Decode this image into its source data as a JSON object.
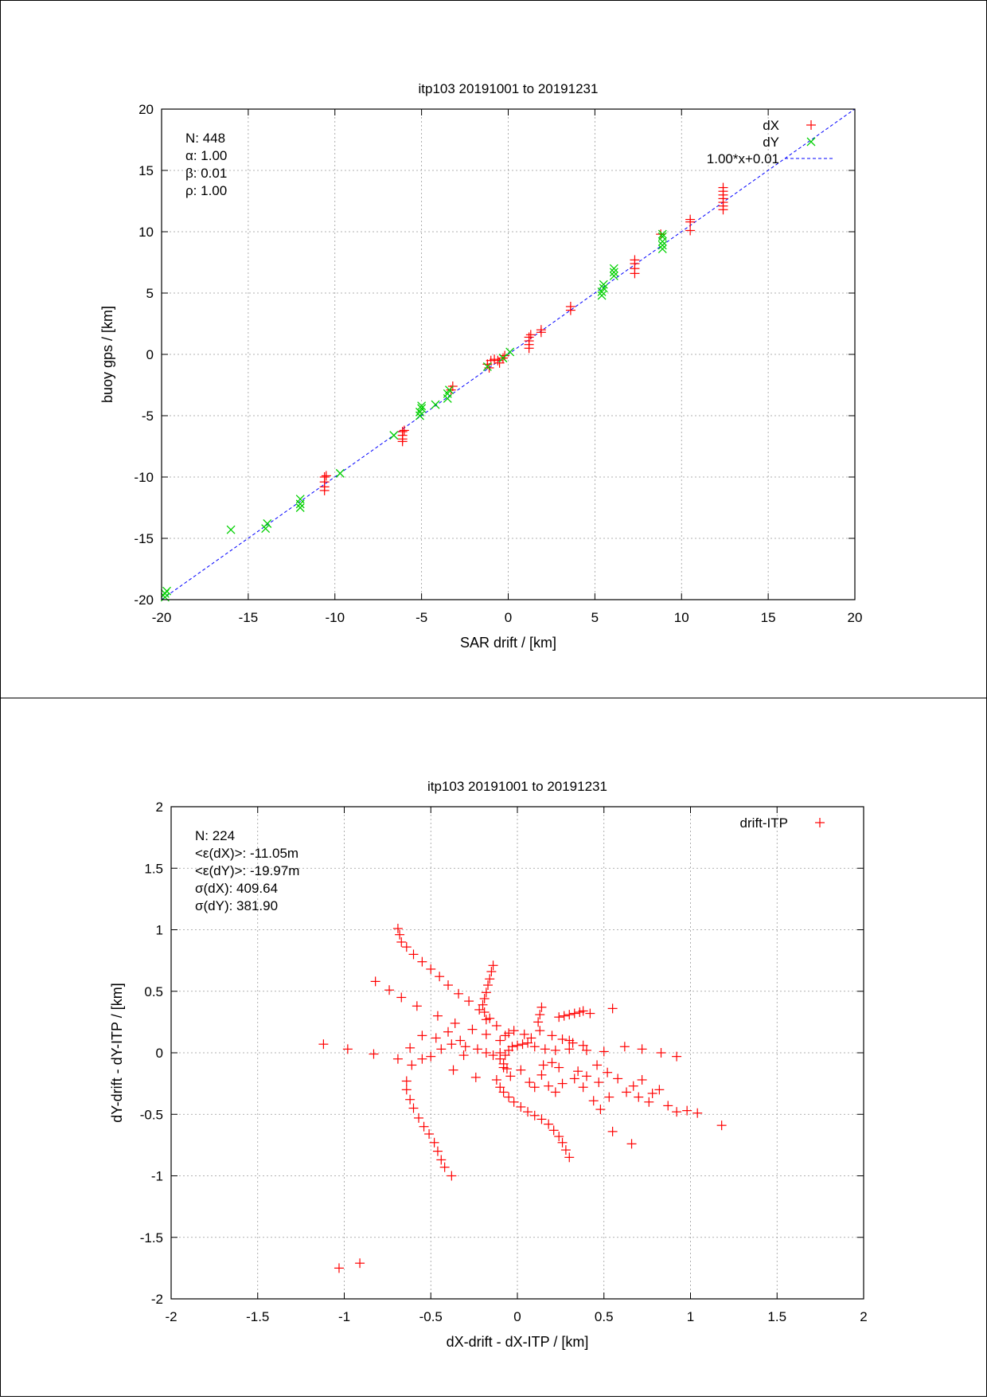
{
  "chart_data": [
    {
      "type": "scatter",
      "title": "itp103 20191001 to 20191231",
      "xlabel": "SAR drift / [km]",
      "ylabel": "buoy gps / [km]",
      "xlim": [
        -20,
        20
      ],
      "ylim": [
        -20,
        20
      ],
      "xticks": [
        -20,
        -15,
        -10,
        -5,
        0,
        5,
        10,
        15,
        20
      ],
      "yticks": [
        -20,
        -15,
        -10,
        -5,
        0,
        5,
        10,
        15,
        20
      ],
      "grid": true,
      "legend_position": "top-right",
      "stats": [
        "N: 448",
        "α: 1.00",
        "β: 0.01",
        "ρ: 1.00"
      ],
      "series": [
        {
          "name": "dX",
          "marker": "plus",
          "color": "#ff0000",
          "points": [
            [
              -10.6,
              -10.0
            ],
            [
              -10.6,
              -10.4
            ],
            [
              -10.6,
              -10.8
            ],
            [
              -10.6,
              -11.1
            ],
            [
              -10.5,
              -9.9
            ],
            [
              -6.1,
              -6.3
            ],
            [
              -6.1,
              -6.6
            ],
            [
              -6.1,
              -6.9
            ],
            [
              -6.1,
              -7.1
            ],
            [
              -6.0,
              -6.2
            ],
            [
              -3.2,
              -2.6
            ],
            [
              -3.3,
              -2.9
            ],
            [
              -1.1,
              -1.1
            ],
            [
              -1.2,
              -0.8
            ],
            [
              -0.6,
              -0.5
            ],
            [
              -0.8,
              -0.4
            ],
            [
              -1.0,
              -0.5
            ],
            [
              -0.5,
              -0.7
            ],
            [
              -0.2,
              -0.1
            ],
            [
              -0.3,
              -0.3
            ],
            [
              1.2,
              0.5
            ],
            [
              1.2,
              0.8
            ],
            [
              1.2,
              1.1
            ],
            [
              1.2,
              1.4
            ],
            [
              1.3,
              1.6
            ],
            [
              1.9,
              1.8
            ],
            [
              1.9,
              2.0
            ],
            [
              3.6,
              3.6
            ],
            [
              3.6,
              3.9
            ],
            [
              7.3,
              6.6
            ],
            [
              7.3,
              7.0
            ],
            [
              7.3,
              7.4
            ],
            [
              7.3,
              7.7
            ],
            [
              8.8,
              9.8
            ],
            [
              10.5,
              10.1
            ],
            [
              10.5,
              10.8
            ],
            [
              10.5,
              11.0
            ],
            [
              12.4,
              11.8
            ],
            [
              12.4,
              12.1
            ],
            [
              12.4,
              12.4
            ],
            [
              12.4,
              12.7
            ],
            [
              12.4,
              13.0
            ],
            [
              12.4,
              13.3
            ],
            [
              12.4,
              13.6
            ]
          ]
        },
        {
          "name": "dY",
          "marker": "cross",
          "color": "#00d000",
          "points": [
            [
              -19.8,
              -19.8
            ],
            [
              -19.8,
              -19.5
            ],
            [
              -19.7,
              -19.3
            ],
            [
              -16.0,
              -14.3
            ],
            [
              -14.0,
              -14.2
            ],
            [
              -13.9,
              -13.8
            ],
            [
              -12.0,
              -12.5
            ],
            [
              -12.0,
              -12.2
            ],
            [
              -12.0,
              -11.8
            ],
            [
              -9.7,
              -9.7
            ],
            [
              -6.6,
              -6.6
            ],
            [
              -5.1,
              -5.0
            ],
            [
              -5.1,
              -4.7
            ],
            [
              -5.0,
              -4.4
            ],
            [
              -5.0,
              -4.2
            ],
            [
              -4.2,
              -4.1
            ],
            [
              -3.5,
              -3.6
            ],
            [
              -3.5,
              -3.2
            ],
            [
              -3.4,
              -2.9
            ],
            [
              -1.2,
              -1.0
            ],
            [
              -0.3,
              -0.3
            ],
            [
              0.1,
              0.2
            ],
            [
              5.4,
              4.8
            ],
            [
              5.4,
              5.1
            ],
            [
              5.5,
              5.4
            ],
            [
              5.5,
              5.7
            ],
            [
              6.1,
              6.4
            ],
            [
              6.1,
              6.7
            ],
            [
              6.1,
              7.0
            ],
            [
              8.9,
              8.6
            ],
            [
              8.9,
              8.9
            ],
            [
              8.9,
              9.2
            ],
            [
              8.9,
              9.6
            ],
            [
              8.9,
              9.8
            ]
          ]
        }
      ],
      "fit_line": {
        "label": "1.00*x+0.01",
        "slope": 1.0,
        "intercept": 0.01,
        "color": "#0000ff"
      }
    },
    {
      "type": "scatter",
      "title": "itp103 20191001 to 20191231",
      "xlabel": "dX-drift - dX-ITP / [km]",
      "ylabel": "dY-drift - dY-ITP / [km]",
      "xlim": [
        -2,
        2
      ],
      "ylim": [
        -2,
        2
      ],
      "xticks": [
        -2,
        -1.5,
        -1,
        -0.5,
        0,
        0.5,
        1,
        1.5,
        2
      ],
      "yticks": [
        -2,
        -1.5,
        -1,
        -0.5,
        0,
        0.5,
        1,
        1.5,
        2
      ],
      "grid": true,
      "legend_position": "top-right",
      "stats": [
        "N: 224",
        "<ε(dX)>:  -11.05m",
        "<ε(dY)>: -19.97m",
        "σ(dX):  409.64",
        "σ(dY):  381.90"
      ],
      "series": [
        {
          "name": "drift-ITP",
          "marker": "plus",
          "color": "#ff0000",
          "points": [
            [
              -1.12,
              0.07
            ],
            [
              -0.98,
              0.03
            ],
            [
              -0.83,
              -0.01
            ],
            [
              -1.03,
              -1.75
            ],
            [
              -0.91,
              -1.71
            ],
            [
              -0.82,
              0.58
            ],
            [
              -0.74,
              0.51
            ],
            [
              -0.67,
              0.45
            ],
            [
              -0.58,
              0.38
            ],
            [
              -0.46,
              0.3
            ],
            [
              -0.36,
              0.24
            ],
            [
              -0.26,
              0.19
            ],
            [
              -0.18,
              0.15
            ],
            [
              -0.1,
              0.1
            ],
            [
              -0.69,
              1.01
            ],
            [
              -0.68,
              0.96
            ],
            [
              -0.67,
              0.9
            ],
            [
              -0.64,
              0.86
            ],
            [
              -0.6,
              0.8
            ],
            [
              -0.55,
              0.74
            ],
            [
              -0.5,
              0.68
            ],
            [
              -0.45,
              0.62
            ],
            [
              -0.4,
              0.55
            ],
            [
              -0.34,
              0.48
            ],
            [
              -0.28,
              0.42
            ],
            [
              -0.22,
              0.35
            ],
            [
              -0.16,
              0.28
            ],
            [
              -0.12,
              0.22
            ],
            [
              -0.14,
              0.71
            ],
            [
              -0.15,
              0.66
            ],
            [
              -0.16,
              0.6
            ],
            [
              -0.17,
              0.55
            ],
            [
              -0.18,
              0.49
            ],
            [
              -0.19,
              0.44
            ],
            [
              -0.2,
              0.39
            ],
            [
              -0.19,
              0.33
            ],
            [
              -0.18,
              0.27
            ],
            [
              -0.64,
              -0.23
            ],
            [
              -0.64,
              -0.3
            ],
            [
              -0.62,
              -0.38
            ],
            [
              -0.6,
              -0.45
            ],
            [
              -0.57,
              -0.53
            ],
            [
              -0.54,
              -0.6
            ],
            [
              -0.51,
              -0.66
            ],
            [
              -0.48,
              -0.73
            ],
            [
              -0.46,
              -0.8
            ],
            [
              -0.44,
              -0.87
            ],
            [
              -0.42,
              -0.93
            ],
            [
              -0.38,
              -1.0
            ],
            [
              -0.12,
              -0.22
            ],
            [
              -0.1,
              -0.28
            ],
            [
              -0.08,
              -0.32
            ],
            [
              -0.05,
              -0.36
            ],
            [
              -0.02,
              -0.4
            ],
            [
              0.02,
              -0.44
            ],
            [
              0.06,
              -0.48
            ],
            [
              0.1,
              -0.51
            ],
            [
              0.14,
              -0.54
            ],
            [
              0.18,
              -0.58
            ],
            [
              0.21,
              -0.63
            ],
            [
              0.24,
              -0.68
            ],
            [
              0.26,
              -0.73
            ],
            [
              0.28,
              -0.79
            ],
            [
              0.3,
              -0.85
            ],
            [
              0.55,
              -0.64
            ],
            [
              0.66,
              -0.74
            ],
            [
              0.72,
              -0.22
            ],
            [
              0.76,
              -0.4
            ],
            [
              0.82,
              -0.3
            ],
            [
              0.87,
              -0.43
            ],
            [
              0.92,
              -0.48
            ],
            [
              0.98,
              -0.47
            ],
            [
              1.04,
              -0.49
            ],
            [
              1.18,
              -0.59
            ],
            [
              0.1,
              0.05
            ],
            [
              0.16,
              0.03
            ],
            [
              0.22,
              0.02
            ],
            [
              0.3,
              0.03
            ],
            [
              0.4,
              0.02
            ],
            [
              0.5,
              0.01
            ],
            [
              0.62,
              0.05
            ],
            [
              0.72,
              0.03
            ],
            [
              0.83,
              0.0
            ],
            [
              0.92,
              -0.03
            ],
            [
              0.24,
              0.29
            ],
            [
              0.27,
              0.3
            ],
            [
              0.3,
              0.31
            ],
            [
              0.33,
              0.32
            ],
            [
              0.36,
              0.33
            ],
            [
              0.38,
              0.34
            ],
            [
              0.42,
              0.32
            ],
            [
              0.55,
              0.36
            ],
            [
              0.14,
              0.37
            ],
            [
              0.13,
              0.31
            ],
            [
              0.12,
              0.25
            ],
            [
              0.13,
              0.18
            ],
            [
              -0.55,
              0.14
            ],
            [
              -0.47,
              0.12
            ],
            [
              -0.4,
              0.17
            ],
            [
              -0.33,
              0.1
            ],
            [
              -0.3,
              0.05
            ],
            [
              -0.23,
              0.03
            ],
            [
              -0.18,
              0.0
            ],
            [
              -0.14,
              -0.02
            ],
            [
              -0.1,
              -0.05
            ],
            [
              -0.08,
              -0.09
            ],
            [
              -0.06,
              -0.13
            ],
            [
              -0.1,
              0.0
            ],
            [
              -0.07,
              -0.02
            ],
            [
              -0.05,
              0.02
            ],
            [
              -0.03,
              0.05
            ],
            [
              0.0,
              0.06
            ],
            [
              0.03,
              0.07
            ],
            [
              0.06,
              0.08
            ],
            [
              -0.02,
              0.18
            ],
            [
              -0.05,
              0.16
            ],
            [
              -0.07,
              0.14
            ],
            [
              -0.62,
              0.04
            ],
            [
              -0.55,
              -0.05
            ],
            [
              -0.5,
              -0.03
            ],
            [
              -0.44,
              0.03
            ],
            [
              -0.38,
              0.07
            ],
            [
              -0.31,
              -0.02
            ],
            [
              -0.24,
              -0.2
            ],
            [
              -0.37,
              -0.14
            ],
            [
              -0.61,
              -0.1
            ],
            [
              -0.69,
              -0.05
            ],
            [
              -0.08,
              -0.12
            ],
            [
              -0.04,
              -0.19
            ],
            [
              0.02,
              -0.14
            ],
            [
              0.07,
              -0.24
            ],
            [
              0.1,
              -0.28
            ],
            [
              0.14,
              -0.18
            ],
            [
              0.18,
              -0.27
            ],
            [
              0.22,
              -0.32
            ],
            [
              0.26,
              -0.25
            ],
            [
              0.33,
              -0.21
            ],
            [
              0.38,
              -0.28
            ],
            [
              0.44,
              -0.39
            ],
            [
              0.48,
              -0.46
            ],
            [
              0.53,
              -0.36
            ],
            [
              0.2,
              0.14
            ],
            [
              0.26,
              0.11
            ],
            [
              0.32,
              0.08
            ],
            [
              0.38,
              0.06
            ],
            [
              0.46,
              -0.1
            ],
            [
              0.52,
              -0.16
            ],
            [
              0.58,
              -0.21
            ],
            [
              0.63,
              -0.32
            ],
            [
              0.67,
              -0.27
            ],
            [
              0.7,
              -0.36
            ],
            [
              0.78,
              -0.33
            ],
            [
              0.35,
              -0.15
            ],
            [
              0.4,
              -0.19
            ],
            [
              0.47,
              -0.24
            ],
            [
              0.3,
              0.1
            ],
            [
              0.2,
              -0.08
            ],
            [
              0.24,
              -0.12
            ],
            [
              0.15,
              -0.1
            ],
            [
              0.08,
              0.12
            ],
            [
              0.04,
              0.15
            ]
          ]
        }
      ]
    }
  ]
}
